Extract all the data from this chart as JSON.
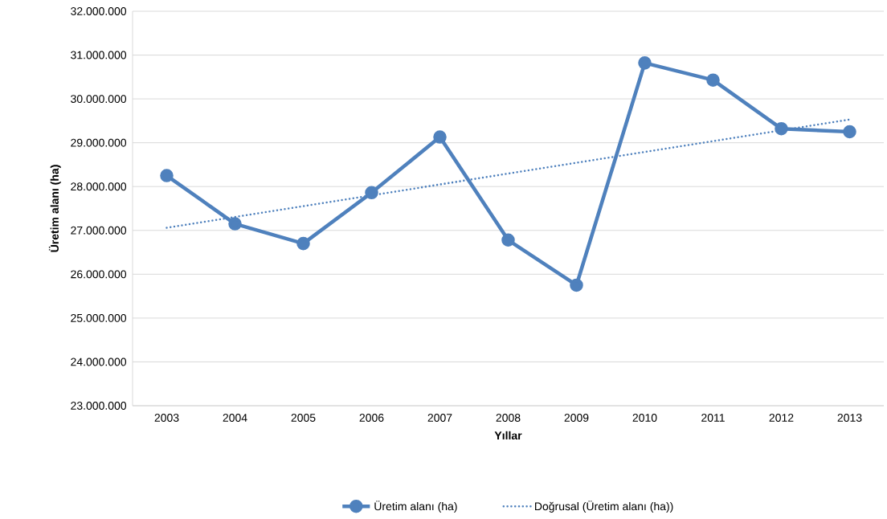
{
  "chart_data": {
    "type": "line",
    "xlabel": "Yıllar",
    "ylabel": "Üretim alanı (ha)",
    "x": [
      2003,
      2004,
      2005,
      2006,
      2007,
      2008,
      2009,
      2010,
      2011,
      2012,
      2013
    ],
    "xlim": [
      2002.5,
      2013.5
    ],
    "xticks": [
      2003,
      2004,
      2005,
      2006,
      2007,
      2008,
      2009,
      2010,
      2011,
      2012,
      2013
    ],
    "ylim": [
      23000000,
      32000000
    ],
    "yticks": [
      {
        "value": 23000000,
        "label": "23.000.000"
      },
      {
        "value": 24000000,
        "label": "24.000.000"
      },
      {
        "value": 25000000,
        "label": "25.000.000"
      },
      {
        "value": 26000000,
        "label": "26.000.000"
      },
      {
        "value": 27000000,
        "label": "27.000.000"
      },
      {
        "value": 28000000,
        "label": "28.000.000"
      },
      {
        "value": 29000000,
        "label": "29.000.000"
      },
      {
        "value": 30000000,
        "label": "30.000.000"
      },
      {
        "value": 31000000,
        "label": "31.000.000"
      },
      {
        "value": 32000000,
        "label": "32.000.000"
      }
    ],
    "grid": "y",
    "legend": "bottom",
    "series": [
      {
        "name": "Üretim alanı (ha)",
        "color": "#4f81bd",
        "marker": "circle",
        "line_style": "solid",
        "values": [
          28250000,
          27150000,
          26700000,
          27860000,
          29130000,
          26780000,
          25750000,
          30820000,
          30430000,
          29320000,
          29250000
        ]
      },
      {
        "name": "Doğrusal (Üretim alanı (ha))",
        "type": "line",
        "color": "#4f81bd",
        "marker": "none",
        "line_style": "dotted",
        "x": [
          2003,
          2013
        ],
        "values": [
          27060000,
          29530000
        ]
      }
    ]
  }
}
